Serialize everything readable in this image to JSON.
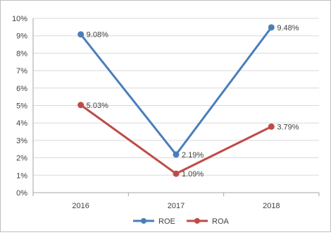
{
  "chart_data": {
    "type": "line",
    "categories": [
      "2016",
      "2017",
      "2018"
    ],
    "y_ticks": [
      "0%",
      "1%",
      "2%",
      "3%",
      "4%",
      "5%",
      "6%",
      "7%",
      "8%",
      "9%",
      "10%"
    ],
    "ylim": [
      0,
      10
    ],
    "grid": true,
    "legend_position": "bottom",
    "series": [
      {
        "name": "ROE",
        "values": [
          9.08,
          2.19,
          9.48
        ],
        "labels": [
          "9.08%",
          "2.19%",
          "9.48%"
        ],
        "color": "#4a7ebb"
      },
      {
        "name": "ROA",
        "values": [
          5.03,
          1.09,
          3.79
        ],
        "labels": [
          "5.03%",
          "1.09%",
          "3.79%"
        ],
        "color": "#be4b48"
      }
    ]
  }
}
